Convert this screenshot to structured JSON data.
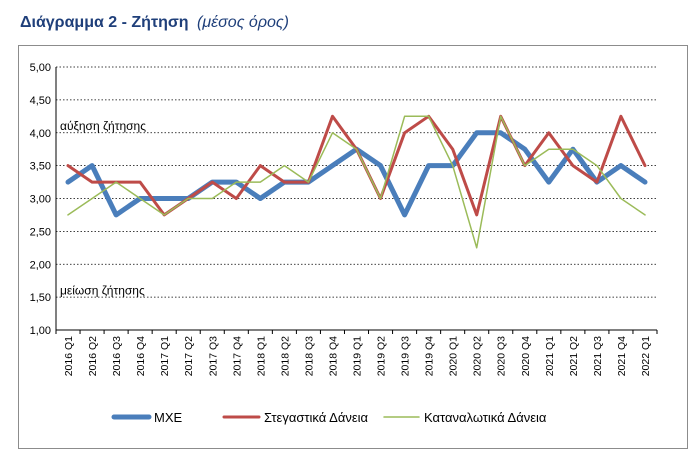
{
  "header": {
    "title": "Διάγραμμα 2 - Ζήτηση",
    "subtitle": "(μέσος όρος)"
  },
  "chart_data": {
    "type": "line",
    "categories": [
      "2016 Q1",
      "2016 Q2",
      "2016 Q3",
      "2016 Q4",
      "2017 Q1",
      "2017 Q2",
      "2017 Q3",
      "2017 Q4",
      "2018 Q1",
      "2018 Q2",
      "2018 Q3",
      "2018 Q4",
      "2019 Q1",
      "2019 Q2",
      "2019 Q3",
      "2019 Q4",
      "2020 Q1",
      "2020 Q2",
      "2020 Q3",
      "2020 Q4",
      "2021 Q1",
      "2021 Q2",
      "2021 Q3",
      "2021 Q4",
      "2022 Q1"
    ],
    "yticks": [
      "5,00",
      "4,50",
      "4,00",
      "3,50",
      "3,00",
      "2,50",
      "2,00",
      "1,50",
      "1,00"
    ],
    "ylim": [
      1.0,
      5.0
    ],
    "grid": true,
    "legend_position": "bottom",
    "annotations": [
      {
        "text": "αύξηση ζήτησης",
        "y": 4.1
      },
      {
        "text": "μείωση ζήτησης",
        "y": 1.6
      }
    ],
    "series": [
      {
        "name": "ΜΧΕ",
        "color": "#4a7ebb",
        "values": [
          3.25,
          3.5,
          2.75,
          3.0,
          3.0,
          3.0,
          3.25,
          3.25,
          3.0,
          3.25,
          3.25,
          3.5,
          3.75,
          3.5,
          2.75,
          3.5,
          3.5,
          4.0,
          4.0,
          3.75,
          3.25,
          3.75,
          3.25,
          3.5,
          3.25
        ]
      },
      {
        "name": "Στεγαστικά Δάνεια",
        "color": "#be4b48",
        "values": [
          3.5,
          3.25,
          3.25,
          3.25,
          2.75,
          3.0,
          3.25,
          3.0,
          3.5,
          3.25,
          3.25,
          4.25,
          3.75,
          3.0,
          4.0,
          4.25,
          3.75,
          2.75,
          4.25,
          3.5,
          4.0,
          3.5,
          3.25,
          4.25,
          3.5
        ]
      },
      {
        "name": "Καταναλωτικά Δάνεια",
        "color": "#9bbb59",
        "values": [
          2.75,
          3.0,
          3.25,
          3.0,
          2.75,
          3.0,
          3.0,
          3.25,
          3.25,
          3.5,
          3.25,
          4.0,
          3.75,
          3.0,
          4.25,
          4.25,
          3.5,
          2.25,
          4.25,
          3.5,
          3.75,
          3.75,
          3.5,
          3.0,
          2.75
        ]
      }
    ]
  }
}
